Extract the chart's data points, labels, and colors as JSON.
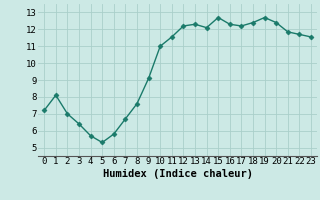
{
  "x": [
    0,
    1,
    2,
    3,
    4,
    5,
    6,
    7,
    8,
    9,
    10,
    11,
    12,
    13,
    14,
    15,
    16,
    17,
    18,
    19,
    20,
    21,
    22,
    23
  ],
  "y": [
    7.2,
    8.1,
    7.0,
    6.4,
    5.7,
    5.3,
    5.8,
    6.7,
    7.6,
    9.1,
    11.0,
    11.55,
    12.2,
    12.3,
    12.1,
    12.7,
    12.3,
    12.2,
    12.4,
    12.7,
    12.4,
    11.85,
    11.7,
    11.55
  ],
  "line_color": "#1a7a6a",
  "marker": "D",
  "markersize": 2.5,
  "linewidth": 1.0,
  "bg_color": "#cce9e5",
  "grid_color": "#aacfca",
  "xlabel": "Humidex (Indice chaleur)",
  "ylim": [
    4.5,
    13.5
  ],
  "xlim": [
    -0.5,
    23.5
  ],
  "yticks": [
    5,
    6,
    7,
    8,
    9,
    10,
    11,
    12,
    13
  ],
  "xticks": [
    0,
    1,
    2,
    3,
    4,
    5,
    6,
    7,
    8,
    9,
    10,
    11,
    12,
    13,
    14,
    15,
    16,
    17,
    18,
    19,
    20,
    21,
    22,
    23
  ],
  "xlabel_fontsize": 7.5,
  "tick_fontsize": 6.5
}
